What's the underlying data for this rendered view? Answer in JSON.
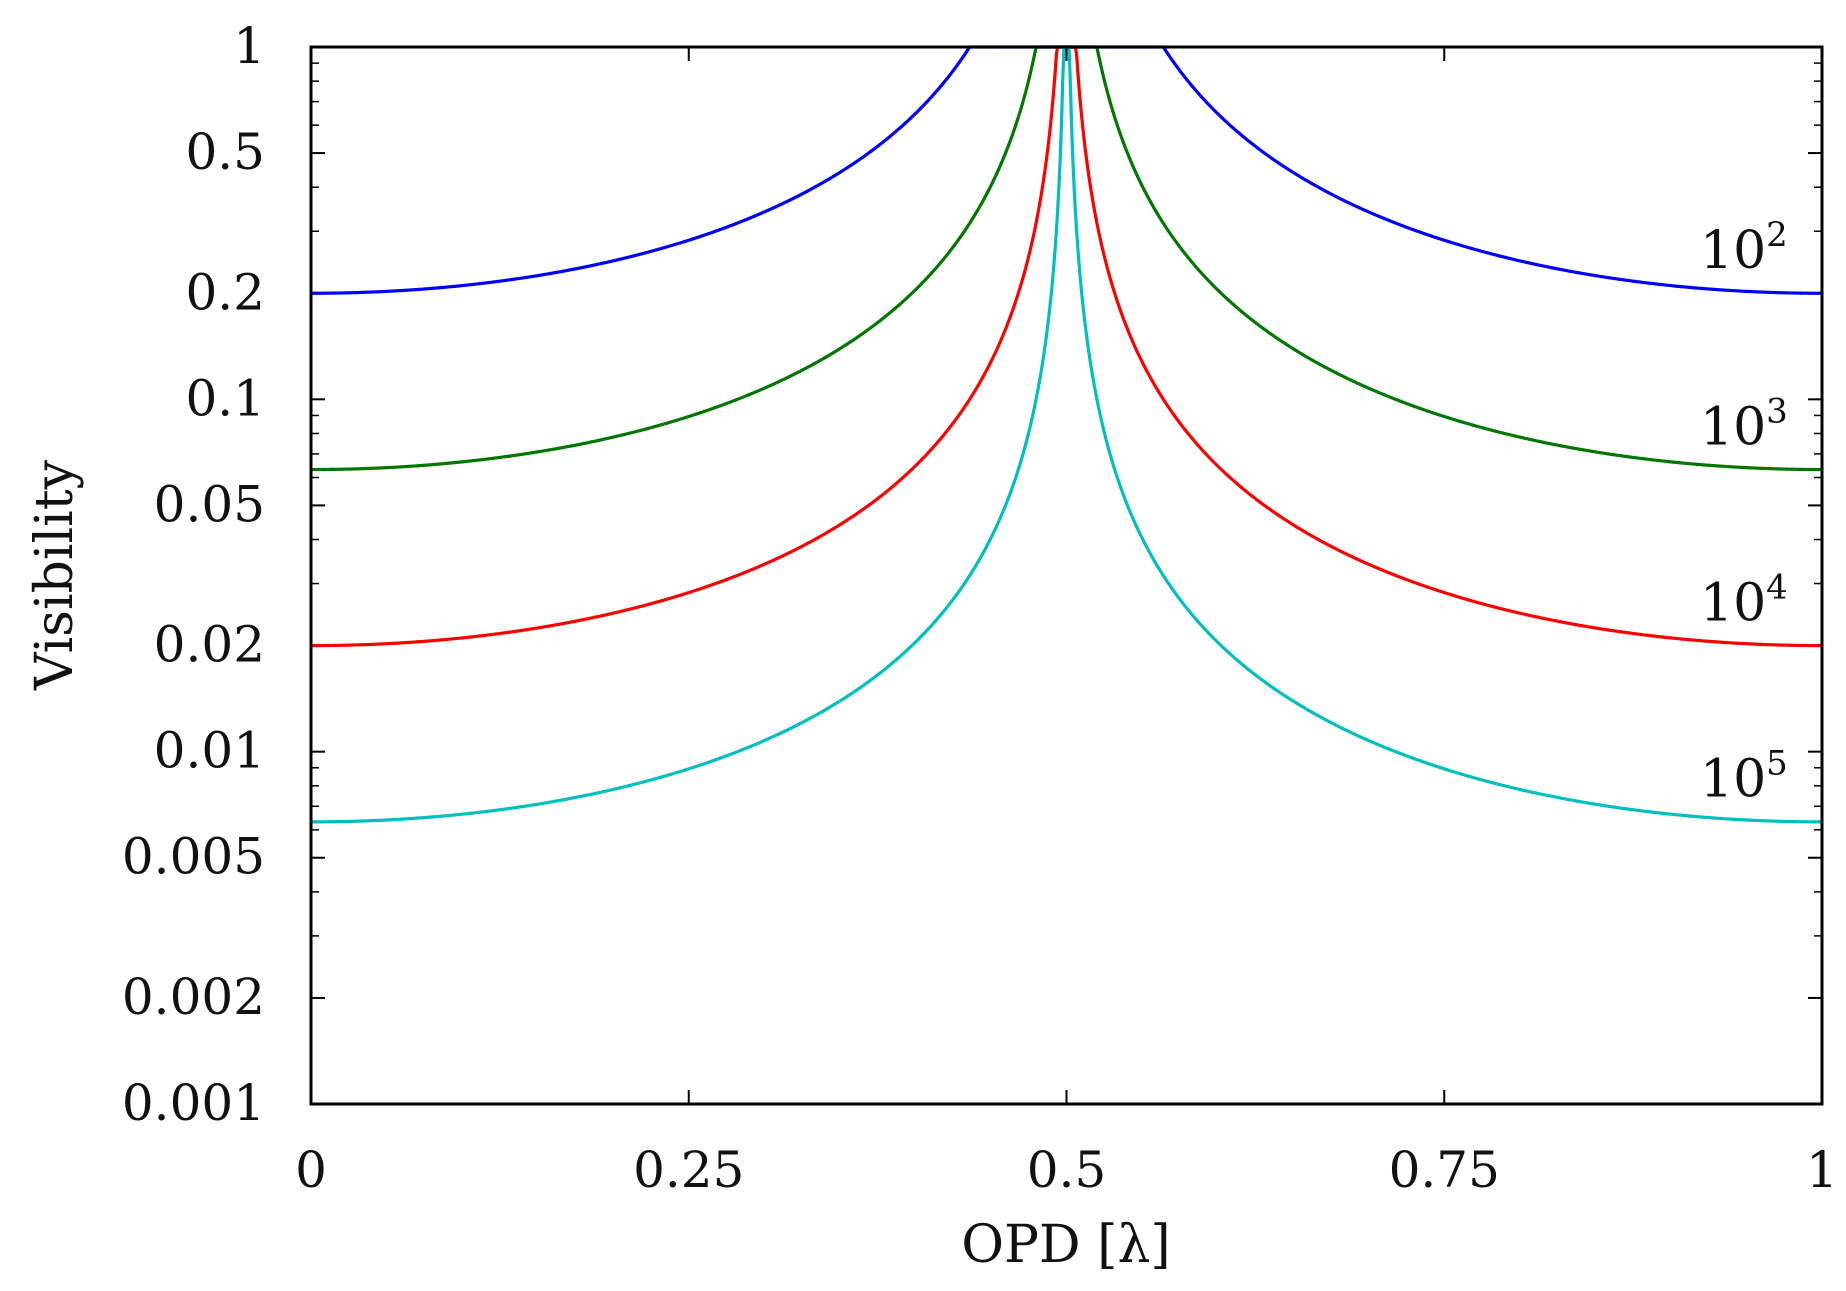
{
  "chart_data": {
    "type": "line",
    "title": "",
    "xlabel": "OPD [λ]",
    "ylabel": "Visibility",
    "xlim": [
      0,
      1
    ],
    "ylim": [
      0.001,
      1
    ],
    "yscale": "log",
    "grid": false,
    "xticks": [
      0,
      0.25,
      0.5,
      0.75,
      1
    ],
    "xtick_labels": [
      "0",
      "0.25",
      "0.5",
      "0.75",
      "1"
    ],
    "yticks": [
      1,
      0.5,
      0.2,
      0.1,
      0.05,
      0.02,
      0.01,
      0.005,
      0.002,
      0.001
    ],
    "ytick_labels": [
      "1",
      "0.5",
      "0.2",
      "0.1",
      "0.05",
      "0.02",
      "0.01",
      "0.005",
      "0.002",
      "0.001"
    ],
    "series": [
      {
        "name": "10^2",
        "label_base": "10",
        "label_exp": "2",
        "color": "#0000ff",
        "visibility_at_0": 0.2
      },
      {
        "name": "10^3",
        "label_base": "10",
        "label_exp": "3",
        "color": "#007700",
        "visibility_at_0": 0.0632
      },
      {
        "name": "10^4",
        "label_base": "10",
        "label_exp": "4",
        "color": "#ff0000",
        "visibility_at_0": 0.02
      },
      {
        "name": "10^5",
        "label_base": "10",
        "label_exp": "5",
        "color": "#00bfbf",
        "visibility_at_0": 0.00632
      }
    ],
    "curve_model": "V(x) = min(1, V0 / |cos(pi x)|)"
  }
}
